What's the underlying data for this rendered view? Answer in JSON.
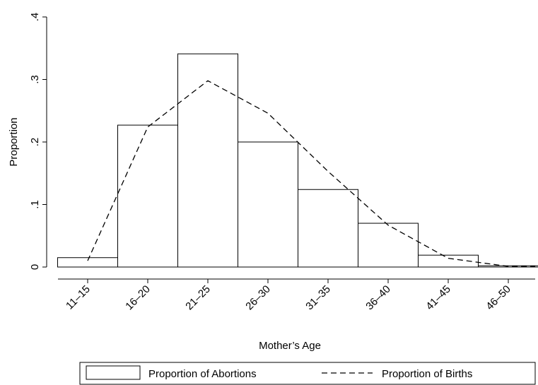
{
  "chart_data": {
    "type": "bar",
    "y_label": "Proportion",
    "x_label": "Mother’s Age",
    "categories": [
      "11–15",
      "16–20",
      "21–25",
      "26–30",
      "31–35",
      "36–40",
      "41–45",
      "46–50"
    ],
    "series": [
      {
        "name": "Proportion of Abortions",
        "type": "bar",
        "color": "#000000",
        "values": [
          0.015,
          0.227,
          0.341,
          0.2,
          0.124,
          0.07,
          0.019,
          0.002
        ]
      },
      {
        "name": "Proportion of Births",
        "type": "line",
        "color": "#000000",
        "values": [
          0.01,
          0.224,
          0.298,
          0.246,
          0.153,
          0.067,
          0.014,
          0.001
        ]
      }
    ],
    "ylim": [
      0,
      0.4
    ],
    "yticks": [
      0,
      {
        "value": 0.1,
        "label": ".1"
      },
      {
        "value": 0.2,
        "label": ".2"
      },
      {
        "value": 0.3,
        "label": ".3"
      },
      {
        "value": 0.4,
        "label": ".4"
      }
    ],
    "grid": false,
    "legend": "bottom"
  }
}
